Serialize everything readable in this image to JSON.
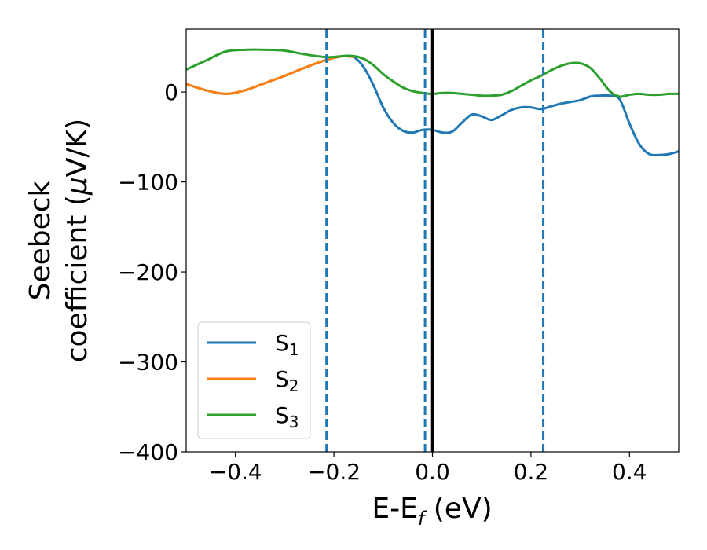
{
  "chart_data": {
    "type": "line",
    "xlabel": "E-E",
    "xlabel_sub": "f",
    "xlabel_unit": " (eV)",
    "ylabel_line1": "Seebeck",
    "ylabel_line2_pre": "coefficient  (",
    "ylabel_mu": "μ",
    "ylabel_line2_post": "V/K)",
    "xlim": [
      -0.5,
      0.5
    ],
    "ylim": [
      -400,
      70
    ],
    "xticks": [
      -0.4,
      -0.2,
      0.0,
      0.2,
      0.4
    ],
    "xtick_labels": [
      "−0.4",
      "−0.2",
      "0.0",
      "0.2",
      "0.4"
    ],
    "yticks": [
      0,
      -100,
      -200,
      -300,
      -400
    ],
    "ytick_labels": [
      "0",
      "−100",
      "−200",
      "−300",
      "−400"
    ],
    "grid": false,
    "legend_position": "lower-left",
    "vlines": [
      {
        "x": -0.215,
        "style": "dashed",
        "color": "#1f77b4"
      },
      {
        "x": -0.015,
        "style": "dashed",
        "color": "#1f77b4"
      },
      {
        "x": 0.0,
        "style": "solid",
        "color": "#000000"
      },
      {
        "x": 0.225,
        "style": "dashed",
        "color": "#1f77b4"
      }
    ],
    "series": [
      {
        "name": "S",
        "sub": "1",
        "color": "#1f77b4",
        "x": [
          -0.5,
          -0.46,
          -0.42,
          -0.38,
          -0.34,
          -0.3,
          -0.26,
          -0.22,
          -0.2,
          -0.18,
          -0.16,
          -0.14,
          -0.12,
          -0.1,
          -0.08,
          -0.06,
          -0.04,
          -0.02,
          0.0,
          0.02,
          0.04,
          0.06,
          0.08,
          0.1,
          0.12,
          0.14,
          0.16,
          0.18,
          0.2,
          0.22,
          0.24,
          0.26,
          0.28,
          0.3,
          0.32,
          0.34,
          0.36,
          0.38,
          0.4,
          0.42,
          0.44,
          0.46,
          0.48,
          0.5
        ],
        "values": [
          9,
          2,
          -2,
          2,
          10,
          18,
          27,
          35,
          38,
          40,
          39,
          28,
          8,
          -17,
          -34,
          -43,
          -45,
          -42,
          -42,
          -45,
          -44,
          -34,
          -25,
          -27,
          -31,
          -26,
          -20,
          -17,
          -17,
          -19,
          -16,
          -13,
          -11,
          -9,
          -5,
          -4,
          -4,
          -8,
          -35,
          -58,
          -69,
          -70,
          -69,
          -66
        ]
      },
      {
        "name": "S",
        "sub": "2",
        "color": "#ff7f0e",
        "x": [
          -0.5,
          -0.46,
          -0.42,
          -0.38,
          -0.34,
          -0.3,
          -0.26,
          -0.22,
          -0.2,
          -0.18,
          -0.16
        ],
        "values": [
          9,
          2,
          -2,
          2,
          10,
          18,
          27,
          35,
          38,
          40,
          39
        ]
      },
      {
        "name": "S",
        "sub": "3",
        "color": "#2ca02c",
        "x": [
          -0.5,
          -0.46,
          -0.42,
          -0.38,
          -0.34,
          -0.3,
          -0.26,
          -0.22,
          -0.2,
          -0.18,
          -0.16,
          -0.14,
          -0.12,
          -0.1,
          -0.08,
          -0.06,
          -0.04,
          -0.02,
          0.0,
          0.02,
          0.04,
          0.06,
          0.08,
          0.1,
          0.12,
          0.14,
          0.16,
          0.18,
          0.2,
          0.22,
          0.24,
          0.26,
          0.28,
          0.3,
          0.32,
          0.34,
          0.36,
          0.38,
          0.4,
          0.42,
          0.44,
          0.46,
          0.48,
          0.5
        ],
        "values": [
          25,
          35,
          45,
          47,
          47,
          46,
          42,
          39,
          39,
          40,
          40,
          37,
          30,
          20,
          12,
          5,
          1,
          -1,
          -2,
          -1,
          -1,
          -2,
          -3,
          -4,
          -4,
          -3,
          1,
          7,
          13,
          18,
          24,
          29,
          32,
          32,
          27,
          15,
          1,
          -5,
          -3,
          -2,
          -3,
          -3,
          -2,
          -2
        ]
      }
    ]
  }
}
